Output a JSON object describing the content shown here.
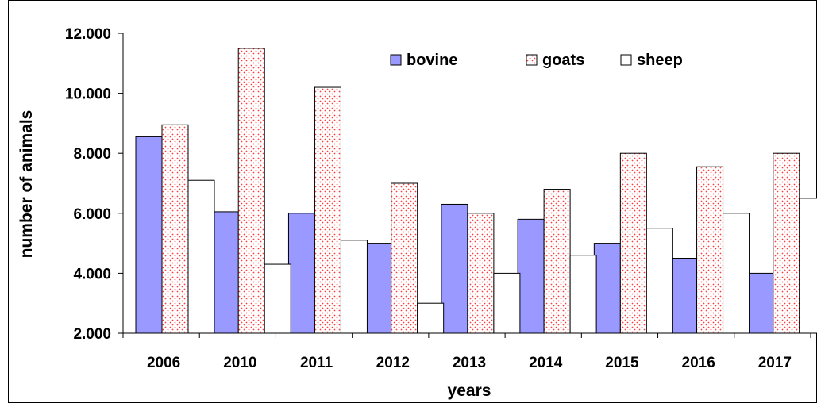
{
  "chart_data": {
    "type": "bar",
    "title": "",
    "xlabel": "years",
    "ylabel": "number of animals",
    "categories": [
      "2006",
      "2010",
      "2011",
      "2012",
      "2013",
      "2014",
      "2015",
      "2016",
      "2017"
    ],
    "ylim": [
      2000,
      12000
    ],
    "yticks": [
      2000,
      4000,
      6000,
      8000,
      10000,
      12000
    ],
    "ytick_labels": [
      "2.000",
      "4.000",
      "6.000",
      "8.000",
      "10.000",
      "12.000"
    ],
    "grid": false,
    "legend_position": "top-right",
    "series": [
      {
        "name": "bovine",
        "color": "#9999ff",
        "pattern": "solid",
        "values": [
          8550,
          6050,
          6000,
          5000,
          6300,
          5800,
          5000,
          4500,
          4000
        ]
      },
      {
        "name": "goats",
        "color": "#ff6666",
        "pattern": "dotted",
        "values": [
          8950,
          11500,
          10200,
          7000,
          6000,
          6800,
          8000,
          7550,
          8000
        ]
      },
      {
        "name": "sheep",
        "color": "#ffffff",
        "pattern": "solid",
        "values": [
          7100,
          4300,
          5100,
          3000,
          4000,
          4600,
          5500,
          6000,
          6500
        ]
      }
    ]
  }
}
